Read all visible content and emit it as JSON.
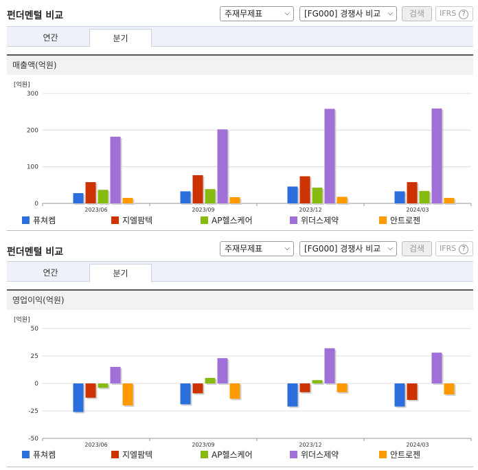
{
  "colors": {
    "s1": "#2a6fdb",
    "s2": "#cc3300",
    "s3": "#88bb11",
    "s4": "#a070d8",
    "s5": "#ff9900"
  },
  "sections": [
    {
      "title": "펀더멘털 비교",
      "select1": "주재무제표",
      "select2": "[FG000] 경쟁사 비교",
      "search_label": "검색",
      "ifrs_label": "IFRS",
      "ifrs_help": "?",
      "tabs": [
        "연간",
        "분기"
      ],
      "active_tab": 1,
      "panel_title": "매출액(억원)",
      "unit": "[억원]"
    },
    {
      "title": "펀더멘털 비교",
      "select1": "주재무제표",
      "select2": "[FG000] 경쟁사 비교",
      "search_label": "검색",
      "ifrs_label": "IFRS",
      "ifrs_help": "?",
      "tabs": [
        "연간",
        "분기"
      ],
      "active_tab": 1,
      "panel_title": "영업이익(억원)",
      "unit": "[억원]"
    }
  ],
  "chart_data": [
    {
      "type": "bar",
      "title": "매출액(억원)",
      "ylabel": "[억원]",
      "categories": [
        "2023/06",
        "2023/09",
        "2023/12",
        "2024/03"
      ],
      "ylim": [
        0,
        300
      ],
      "yticks": [
        0,
        100,
        200,
        300
      ],
      "grid": true,
      "legend": "bottom",
      "series": [
        {
          "name": "퓨쳐켐",
          "values": [
            28,
            33,
            46,
            33
          ]
        },
        {
          "name": "지엘팜텍",
          "values": [
            58,
            77,
            74,
            58
          ]
        },
        {
          "name": "AP헬스케어",
          "values": [
            37,
            39,
            43,
            34
          ]
        },
        {
          "name": "위더스제약",
          "values": [
            182,
            202,
            258,
            259
          ]
        },
        {
          "name": "안트로젠",
          "values": [
            15,
            17,
            18,
            15
          ]
        }
      ]
    },
    {
      "type": "bar",
      "title": "영업이익(억원)",
      "ylabel": "[억원]",
      "categories": [
        "2023/06",
        "2023/09",
        "2023/12",
        "2024/03"
      ],
      "ylim": [
        -50,
        50
      ],
      "yticks": [
        -50,
        -25,
        0,
        25,
        50
      ],
      "grid": true,
      "legend": "bottom",
      "series": [
        {
          "name": "퓨쳐켐",
          "values": [
            -26,
            -19,
            -21,
            -21
          ]
        },
        {
          "name": "지엘팜텍",
          "values": [
            -13,
            -9,
            -8,
            -15
          ]
        },
        {
          "name": "AP헬스케어",
          "values": [
            -4,
            5,
            3,
            0
          ]
        },
        {
          "name": "위더스제약",
          "values": [
            15,
            23,
            32,
            28
          ]
        },
        {
          "name": "안트로젠",
          "values": [
            -20,
            -14,
            -8,
            -10
          ]
        }
      ]
    }
  ]
}
